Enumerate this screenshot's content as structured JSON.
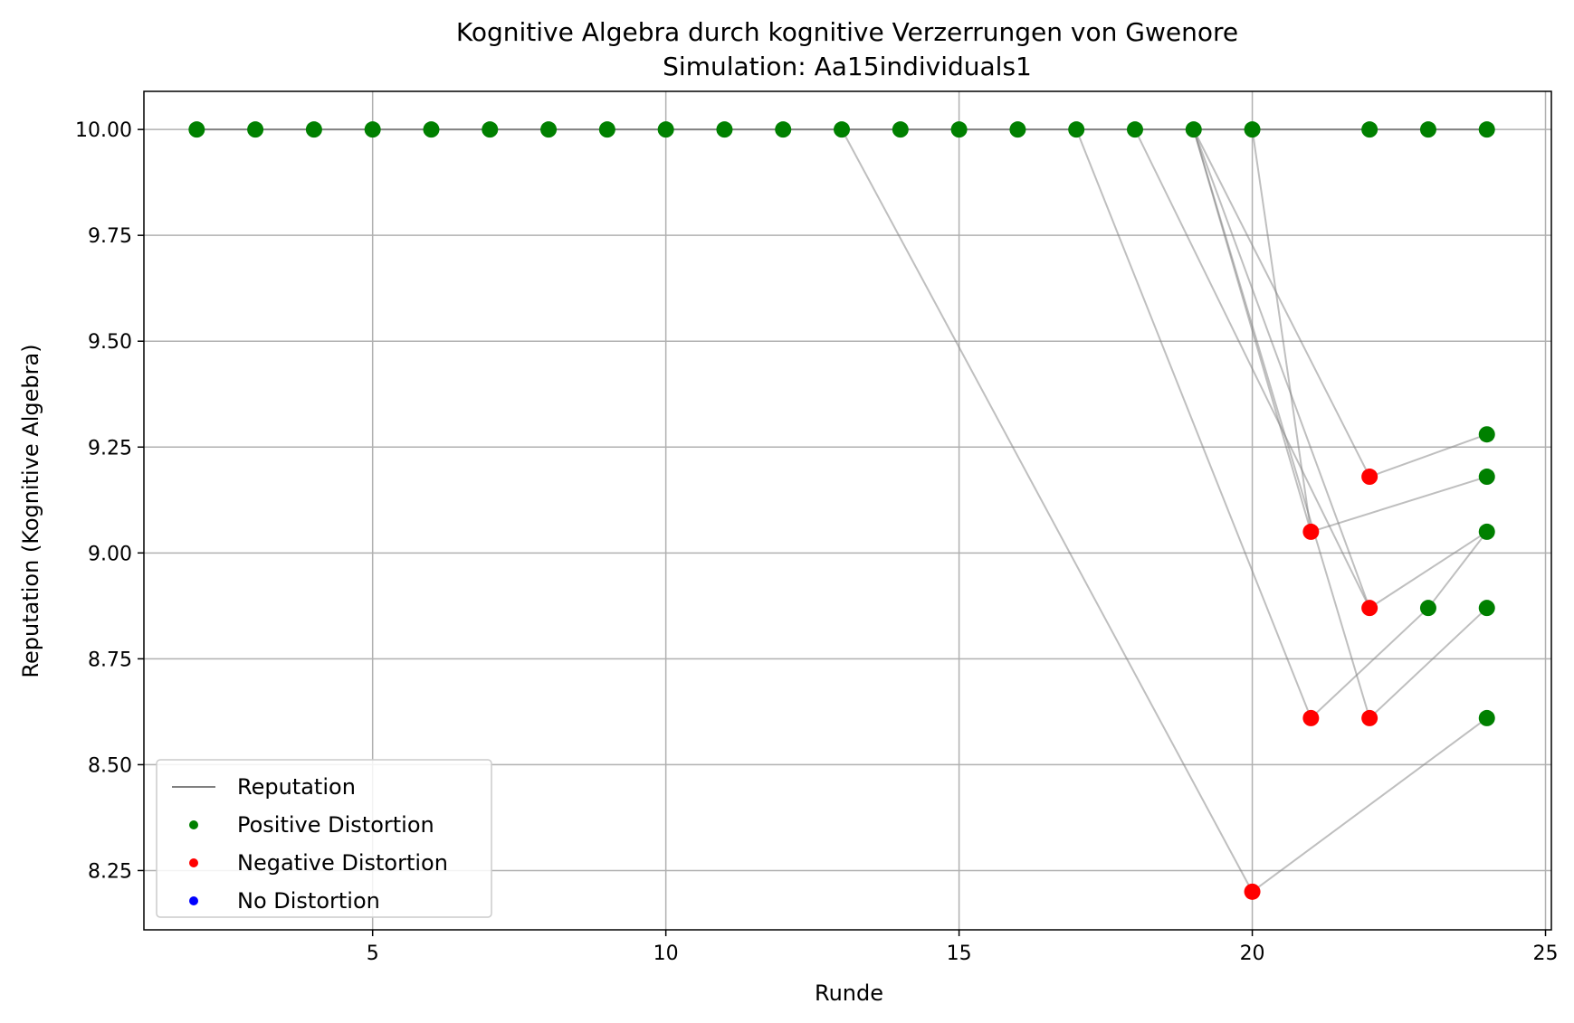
{
  "chart_data": {
    "type": "scatter",
    "title": "Kognitive Algebra durch kognitive Verzerrungen von Gwenore",
    "subtitle": "Simulation: Aa15individuals1",
    "xlabel": "Runde",
    "ylabel": "Reputation (Kognitive Algebra)",
    "xlim": [
      1.1,
      25.1
    ],
    "ylim": [
      8.11,
      10.09
    ],
    "xticks": [
      5,
      10,
      15,
      20,
      25
    ],
    "yticks": [
      8.25,
      8.5,
      8.75,
      9.0,
      9.25,
      9.5,
      9.75,
      10.0
    ],
    "grid": true,
    "legend_position": "lower-left",
    "legend": [
      {
        "label": "Reputation",
        "marker": "line",
        "color": "#808080"
      },
      {
        "label": "Positive Distortion",
        "marker": "dot",
        "color": "#008000"
      },
      {
        "label": "Negative Distortion",
        "marker": "dot",
        "color": "#ff0000"
      },
      {
        "label": "No Distortion",
        "marker": "dot",
        "color": "#0000ff"
      }
    ],
    "colors": {
      "positive": "#008000",
      "negative": "#ff0000",
      "none": "#0000ff",
      "line": "#808080"
    },
    "points": [
      {
        "x": 2,
        "y": 10.0,
        "type": "positive"
      },
      {
        "x": 3,
        "y": 10.0,
        "type": "positive"
      },
      {
        "x": 4,
        "y": 10.0,
        "type": "positive"
      },
      {
        "x": 5,
        "y": 10.0,
        "type": "positive"
      },
      {
        "x": 6,
        "y": 10.0,
        "type": "positive"
      },
      {
        "x": 7,
        "y": 10.0,
        "type": "positive"
      },
      {
        "x": 8,
        "y": 10.0,
        "type": "positive"
      },
      {
        "x": 9,
        "y": 10.0,
        "type": "positive"
      },
      {
        "x": 10,
        "y": 10.0,
        "type": "positive"
      },
      {
        "x": 11,
        "y": 10.0,
        "type": "positive"
      },
      {
        "x": 12,
        "y": 10.0,
        "type": "positive"
      },
      {
        "x": 13,
        "y": 10.0,
        "type": "positive"
      },
      {
        "x": 14,
        "y": 10.0,
        "type": "positive"
      },
      {
        "x": 15,
        "y": 10.0,
        "type": "positive"
      },
      {
        "x": 16,
        "y": 10.0,
        "type": "positive"
      },
      {
        "x": 17,
        "y": 10.0,
        "type": "positive"
      },
      {
        "x": 18,
        "y": 10.0,
        "type": "positive"
      },
      {
        "x": 19,
        "y": 10.0,
        "type": "positive"
      },
      {
        "x": 20,
        "y": 10.0,
        "type": "positive"
      },
      {
        "x": 22,
        "y": 10.0,
        "type": "positive"
      },
      {
        "x": 23,
        "y": 10.0,
        "type": "positive"
      },
      {
        "x": 24,
        "y": 10.0,
        "type": "positive"
      },
      {
        "x": 20,
        "y": 8.2,
        "type": "negative"
      },
      {
        "x": 21,
        "y": 9.05,
        "type": "negative"
      },
      {
        "x": 21,
        "y": 8.61,
        "type": "negative"
      },
      {
        "x": 22,
        "y": 9.18,
        "type": "negative"
      },
      {
        "x": 22,
        "y": 8.87,
        "type": "negative"
      },
      {
        "x": 22,
        "y": 8.61,
        "type": "negative"
      },
      {
        "x": 23,
        "y": 8.87,
        "type": "positive"
      },
      {
        "x": 24,
        "y": 9.28,
        "type": "positive"
      },
      {
        "x": 24,
        "y": 9.18,
        "type": "positive"
      },
      {
        "x": 24,
        "y": 9.05,
        "type": "positive"
      },
      {
        "x": 24,
        "y": 8.87,
        "type": "positive"
      },
      {
        "x": 24,
        "y": 8.61,
        "type": "positive"
      }
    ],
    "reputation_line": [
      {
        "x": 2,
        "y": 10.0
      },
      {
        "x": 24,
        "y": 10.0
      }
    ],
    "connectors": [
      [
        {
          "x": 13,
          "y": 10.0
        },
        {
          "x": 20,
          "y": 8.2
        }
      ],
      [
        {
          "x": 20,
          "y": 8.2
        },
        {
          "x": 24,
          "y": 8.61
        }
      ],
      [
        {
          "x": 17,
          "y": 10.0
        },
        {
          "x": 21,
          "y": 8.61
        }
      ],
      [
        {
          "x": 21,
          "y": 8.61
        },
        {
          "x": 23,
          "y": 8.87
        }
      ],
      [
        {
          "x": 23,
          "y": 8.87
        },
        {
          "x": 24,
          "y": 9.05
        }
      ],
      [
        {
          "x": 18,
          "y": 10.0
        },
        {
          "x": 22,
          "y": 8.87
        }
      ],
      [
        {
          "x": 22,
          "y": 8.87
        },
        {
          "x": 24,
          "y": 9.05
        }
      ],
      [
        {
          "x": 19,
          "y": 10.0
        },
        {
          "x": 21,
          "y": 9.05
        }
      ],
      [
        {
          "x": 21,
          "y": 9.05
        },
        {
          "x": 24,
          "y": 9.18
        }
      ],
      [
        {
          "x": 19,
          "y": 10.0
        },
        {
          "x": 22,
          "y": 9.18
        }
      ],
      [
        {
          "x": 22,
          "y": 9.18
        },
        {
          "x": 24,
          "y": 9.28
        }
      ],
      [
        {
          "x": 19,
          "y": 10.0
        },
        {
          "x": 22,
          "y": 8.61
        }
      ],
      [
        {
          "x": 22,
          "y": 8.61
        },
        {
          "x": 24,
          "y": 8.87
        }
      ],
      [
        {
          "x": 19,
          "y": 10.0
        },
        {
          "x": 22,
          "y": 8.87
        }
      ],
      [
        {
          "x": 20,
          "y": 10.0
        },
        {
          "x": 21,
          "y": 9.05
        }
      ]
    ]
  }
}
